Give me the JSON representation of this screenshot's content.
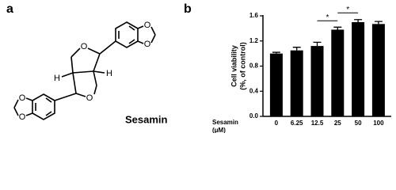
{
  "panel_labels": [
    "a",
    "b"
  ],
  "structure": {
    "name": "Sesamin",
    "atoms": [
      "O",
      "O",
      "O",
      "O",
      "O",
      "O",
      "H",
      "H"
    ]
  },
  "chart_data": {
    "type": "bar",
    "ylabel": [
      "Cell viability",
      "(%, of control)"
    ],
    "xlabel": [
      "Sesamin",
      "(μM)"
    ],
    "categories": [
      "0",
      "6.25",
      "12.5",
      "25",
      "50",
      "100"
    ],
    "values": [
      1.0,
      1.05,
      1.12,
      1.38,
      1.5,
      1.47
    ],
    "errors": [
      0.02,
      0.05,
      0.06,
      0.04,
      0.04,
      0.04
    ],
    "color": "#000000",
    "ylim": [
      0,
      1.6
    ],
    "yticks": [
      {
        "value": 0,
        "label": "0.0"
      },
      {
        "value": 0.4,
        "label": "0.4"
      },
      {
        "value": 0.8,
        "label": "0.8"
      },
      {
        "value": 1.2,
        "label": "1.2"
      },
      {
        "value": 1.6,
        "label": "1.6"
      }
    ],
    "annotations": [
      {
        "text": "*",
        "between": [
          "12.5",
          "25"
        ]
      },
      {
        "text": "*",
        "between": [
          "25",
          "50"
        ]
      }
    ]
  }
}
